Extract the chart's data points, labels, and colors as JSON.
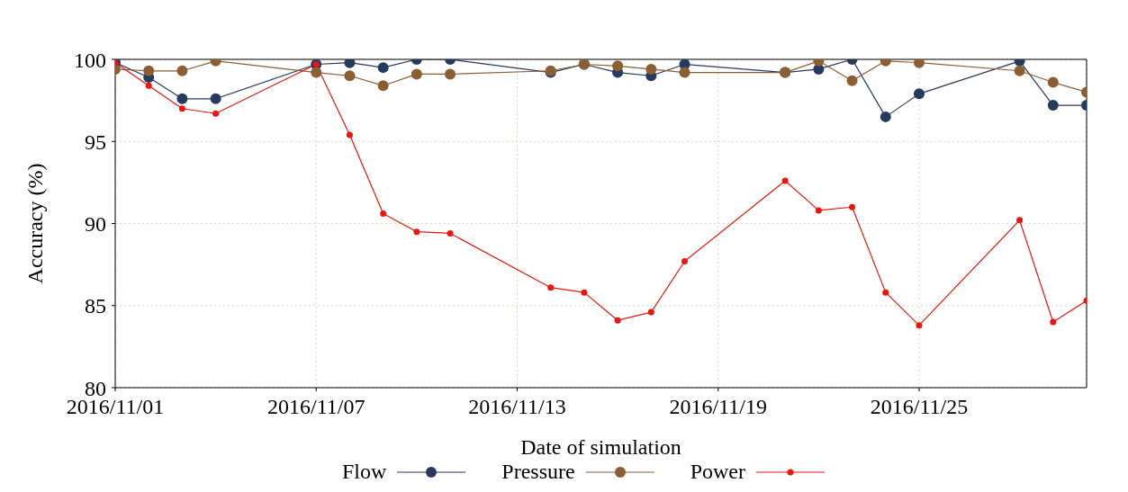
{
  "chart_data": {
    "type": "line",
    "xlabel": "Date of simulation",
    "ylabel": "Accuracy (%)",
    "x": [
      "2016-11-01",
      "2016-11-02",
      "2016-11-03",
      "2016-11-04",
      "2016-11-07",
      "2016-11-08",
      "2016-11-09",
      "2016-11-10",
      "2016-11-11",
      "2016-11-14",
      "2016-11-15",
      "2016-11-16",
      "2016-11-17",
      "2016-11-18",
      "2016-11-21",
      "2016-11-22",
      "2016-11-23",
      "2016-11-24",
      "2016-11-25",
      "2016-11-28",
      "2016-11-29",
      "2016-11-30"
    ],
    "series": [
      {
        "name": "Flow",
        "color": "#263a5e",
        "values": [
          99.8,
          98.9,
          97.6,
          97.6,
          99.7,
          99.8,
          99.5,
          100,
          100,
          99.2,
          99.7,
          99.2,
          99.0,
          99.7,
          99.2,
          99.4,
          100,
          96.5,
          97.9,
          99.9,
          97.2,
          97.2
        ]
      },
      {
        "name": "Pressure",
        "color": "#8b5e34",
        "values": [
          99.4,
          99.3,
          99.3,
          99.9,
          99.2,
          99.0,
          98.4,
          99.1,
          99.1,
          99.3,
          99.7,
          99.6,
          99.4,
          99.2,
          99.2,
          99.9,
          98.7,
          99.9,
          99.8,
          99.3,
          98.6,
          98.0
        ]
      },
      {
        "name": "Power",
        "color": "#e8170f",
        "values": [
          99.8,
          98.4,
          97.0,
          96.7,
          99.7,
          95.4,
          90.6,
          89.5,
          89.4,
          86.1,
          85.8,
          84.1,
          84.6,
          87.7,
          92.6,
          90.8,
          91.0,
          85.8,
          83.8,
          90.2,
          84.0,
          85.3
        ]
      }
    ],
    "xlim": [
      "2016-11-01",
      "2016-11-30"
    ],
    "xticks": [
      {
        "value": "2016-11-01",
        "label": "2016/11/01"
      },
      {
        "value": "2016-11-07",
        "label": "2016/11/07"
      },
      {
        "value": "2016-11-13",
        "label": "2016/11/13"
      },
      {
        "value": "2016-11-19",
        "label": "2016/11/19"
      },
      {
        "value": "2016-11-25",
        "label": "2016/11/25"
      }
    ],
    "ylim": [
      80,
      100
    ],
    "yticks": [
      80,
      85,
      90,
      95,
      100
    ],
    "grid": true,
    "legend": "bottom",
    "marker": "circle",
    "line_style": "solid"
  }
}
